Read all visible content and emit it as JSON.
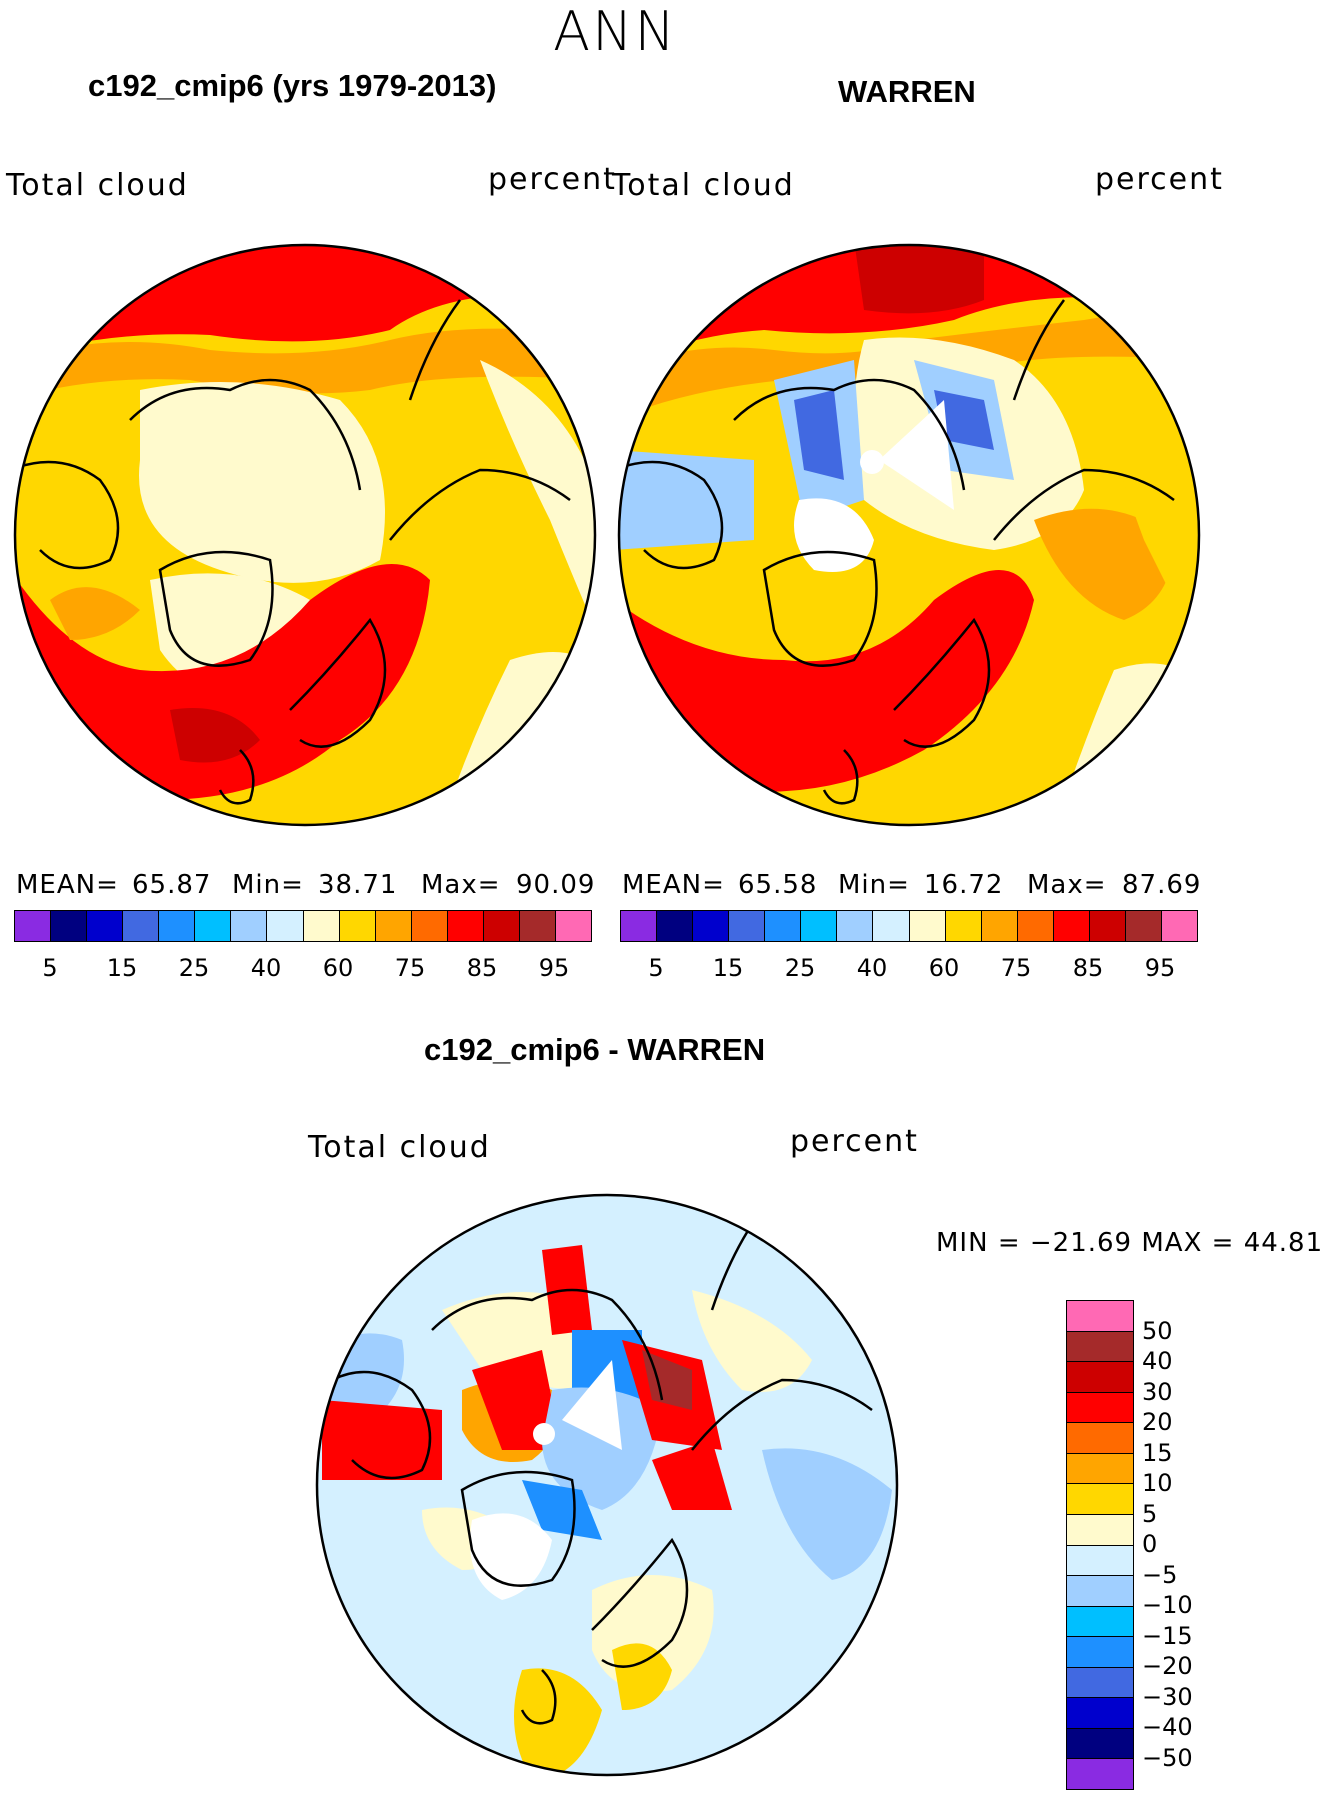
{
  "figure": {
    "title": "ANN",
    "colors": {
      "background": "#ffffff",
      "ocean_default": "#fffacd"
    }
  },
  "panels": [
    {
      "title": "c192_cmip6 (yrs 1979-2013)",
      "variable": "Total cloud",
      "units": "percent",
      "mean_label": "MEAN=",
      "mean": "65.87",
      "min_label": "Min=",
      "min": "38.71",
      "max_label": "Max=",
      "max": "90.09"
    },
    {
      "title": "WARREN",
      "variable": "Total cloud",
      "units": "percent",
      "mean_label": "MEAN=",
      "mean": "65.58",
      "min_label": "Min=",
      "min": "16.72",
      "max_label": "Max=",
      "max": "87.69"
    },
    {
      "title": "c192_cmip6 - WARREN",
      "variable": "Total cloud",
      "units": "percent",
      "minmax_text": "MIN = −21.69  MAX =   44.81"
    }
  ],
  "colorbar_abs": {
    "colors": [
      "#8a2be2",
      "#000080",
      "#0000cd",
      "#4169e1",
      "#1e90ff",
      "#00bfff",
      "#a0cfff",
      "#d4f0ff",
      "#fffacd",
      "#ffd700",
      "#ffa500",
      "#ff6a00",
      "#ff0000",
      "#cd0000",
      "#a52a2a",
      "#ff69b4"
    ],
    "tick_labels": [
      "5",
      "15",
      "25",
      "40",
      "60",
      "75",
      "85",
      "95"
    ]
  },
  "colorbar_diff": {
    "colors_top_to_bottom": [
      "#ff69b4",
      "#a52a2a",
      "#cd0000",
      "#ff0000",
      "#ff6a00",
      "#ffa500",
      "#ffd700",
      "#fffacd",
      "#d4f0ff",
      "#a0cfff",
      "#00bfff",
      "#1e90ff",
      "#4169e1",
      "#0000cd",
      "#000080",
      "#8a2be2"
    ],
    "tick_labels": [
      "50",
      "40",
      "30",
      "20",
      "15",
      "10",
      "5",
      "0",
      "−5",
      "−10",
      "−15",
      "−20",
      "−30",
      "−40",
      "−50"
    ]
  }
}
